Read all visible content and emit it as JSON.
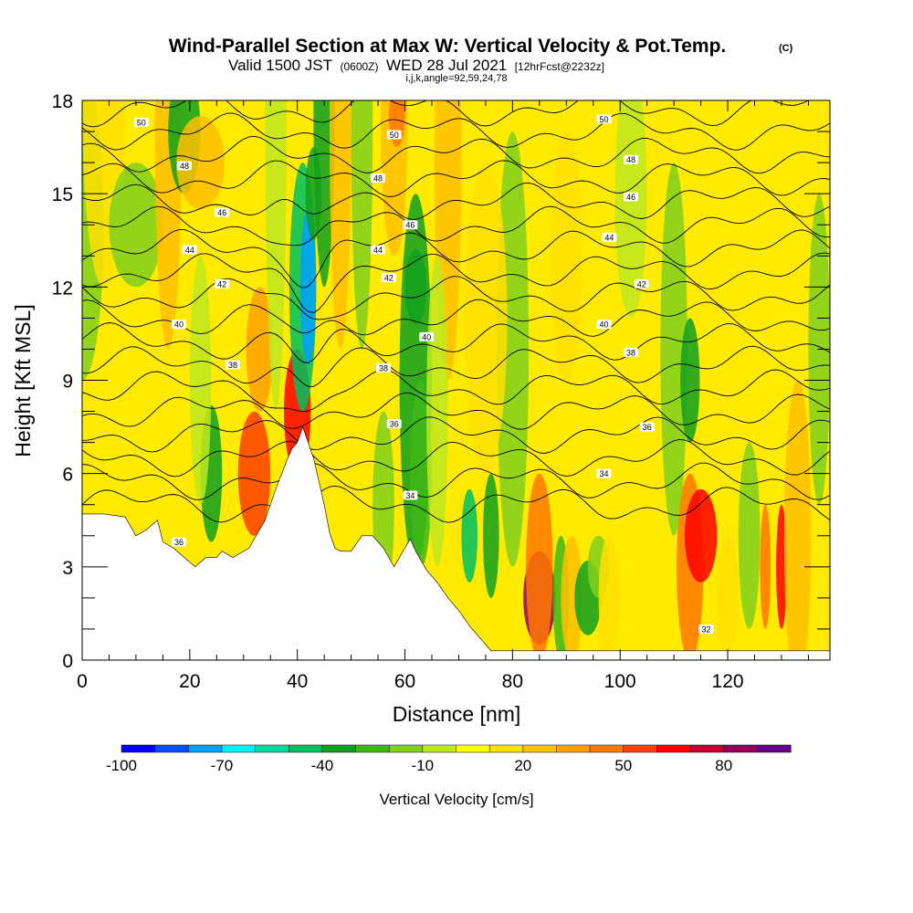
{
  "header": {
    "title": "Wind-Parallel Section at Max W: Vertical Velocity & Pot.Temp.",
    "title_mark": "(C)",
    "valid_prefix": "Valid 1500 JST",
    "valid_utc": "(0600Z)",
    "valid_date": "WED 28 Jul 2021",
    "valid_fcst": "[12hrFcst@2232z]",
    "indices": "i,j,k,angle=92,59,24,78"
  },
  "chart_data": {
    "type": "heatmap",
    "xlabel": "Distance [nm]",
    "ylabel": "Height [Kft MSL]",
    "xlim": [
      0,
      139
    ],
    "ylim": [
      0,
      18
    ],
    "xticks": [
      "0",
      "20",
      "40",
      "60",
      "80",
      "100",
      "120"
    ],
    "yticks": [
      "0",
      "3",
      "6",
      "9",
      "12",
      "15",
      "18"
    ],
    "colorbar": {
      "label": "Vertical Velocity [cm/s]",
      "tick_labels": [
        "-100",
        "-70",
        "-40",
        "-10",
        "20",
        "50",
        "80"
      ],
      "levels": [
        -100,
        -90,
        -80,
        -70,
        -60,
        -50,
        -40,
        -30,
        -20,
        -10,
        0,
        10,
        20,
        30,
        40,
        50,
        60,
        70,
        80,
        90
      ],
      "colors": [
        "#0000ff",
        "#0050ff",
        "#00a0ff",
        "#00f0ff",
        "#00d8a0",
        "#00c060",
        "#10a020",
        "#40b818",
        "#80d020",
        "#c0e820",
        "#ffff00",
        "#ffe000",
        "#ffc000",
        "#ffa000",
        "#ff7800",
        "#ff4000",
        "#ff0000",
        "#c80030",
        "#96005a",
        "#64008c"
      ]
    },
    "terrain": [
      [
        0,
        4.7
      ],
      [
        4,
        4.7
      ],
      [
        8,
        4.6
      ],
      [
        10,
        4.0
      ],
      [
        12,
        4.2
      ],
      [
        14,
        4.5
      ],
      [
        15,
        3.8
      ],
      [
        17,
        3.6
      ],
      [
        19,
        3.3
      ],
      [
        21,
        3.0
      ],
      [
        23,
        3.3
      ],
      [
        25,
        3.3
      ],
      [
        26,
        3.5
      ],
      [
        28,
        3.3
      ],
      [
        31,
        3.6
      ],
      [
        34,
        4.5
      ],
      [
        36,
        5.5
      ],
      [
        38,
        6.4
      ],
      [
        39,
        6.8
      ],
      [
        40,
        7.0
      ],
      [
        41,
        7.5
      ],
      [
        43,
        6.5
      ],
      [
        45,
        5.0
      ],
      [
        46,
        4.1
      ],
      [
        47,
        3.6
      ],
      [
        48,
        3.5
      ],
      [
        50,
        3.5
      ],
      [
        52,
        4.0
      ],
      [
        54,
        4.0
      ],
      [
        56,
        3.6
      ],
      [
        58,
        3.0
      ],
      [
        60,
        3.6
      ],
      [
        61,
        3.9
      ],
      [
        62,
        3.5
      ],
      [
        64,
        2.9
      ],
      [
        66,
        2.5
      ],
      [
        68,
        2.0
      ],
      [
        70,
        1.6
      ],
      [
        72,
        1.1
      ],
      [
        74,
        0.7
      ],
      [
        76,
        0.3
      ],
      [
        78,
        0.3
      ],
      [
        139,
        0.3
      ]
    ],
    "theta_contours": {
      "levels": [
        32,
        34,
        36,
        38,
        40,
        42,
        44,
        46,
        48,
        50
      ],
      "labels": [
        {
          "text": "50",
          "x": 11,
          "y": 17.3
        },
        {
          "text": "48",
          "x": 19,
          "y": 15.9
        },
        {
          "text": "46",
          "x": 26,
          "y": 14.4
        },
        {
          "text": "44",
          "x": 20,
          "y": 13.2
        },
        {
          "text": "42",
          "x": 26,
          "y": 12.1
        },
        {
          "text": "40",
          "x": 18,
          "y": 10.8
        },
        {
          "text": "38",
          "x": 28,
          "y": 9.5
        },
        {
          "text": "36",
          "x": 18,
          "y": 3.8
        },
        {
          "text": "50",
          "x": 58,
          "y": 16.9
        },
        {
          "text": "48",
          "x": 55,
          "y": 15.5
        },
        {
          "text": "46",
          "x": 61,
          "y": 14.0
        },
        {
          "text": "44",
          "x": 55,
          "y": 13.2
        },
        {
          "text": "42",
          "x": 57,
          "y": 12.3
        },
        {
          "text": "40",
          "x": 64,
          "y": 10.4
        },
        {
          "text": "38",
          "x": 56,
          "y": 9.4
        },
        {
          "text": "36",
          "x": 58,
          "y": 7.6
        },
        {
          "text": "34",
          "x": 61,
          "y": 5.3
        },
        {
          "text": "50",
          "x": 97,
          "y": 17.4
        },
        {
          "text": "48",
          "x": 102,
          "y": 16.1
        },
        {
          "text": "46",
          "x": 102,
          "y": 14.9
        },
        {
          "text": "44",
          "x": 98,
          "y": 13.6
        },
        {
          "text": "42",
          "x": 104,
          "y": 12.1
        },
        {
          "text": "40",
          "x": 97,
          "y": 10.8
        },
        {
          "text": "38",
          "x": 102,
          "y": 9.9
        },
        {
          "text": "36",
          "x": 105,
          "y": 7.5
        },
        {
          "text": "34",
          "x": 97,
          "y": 6.0
        },
        {
          "text": "32",
          "x": 116,
          "y": 1.0
        }
      ]
    }
  }
}
